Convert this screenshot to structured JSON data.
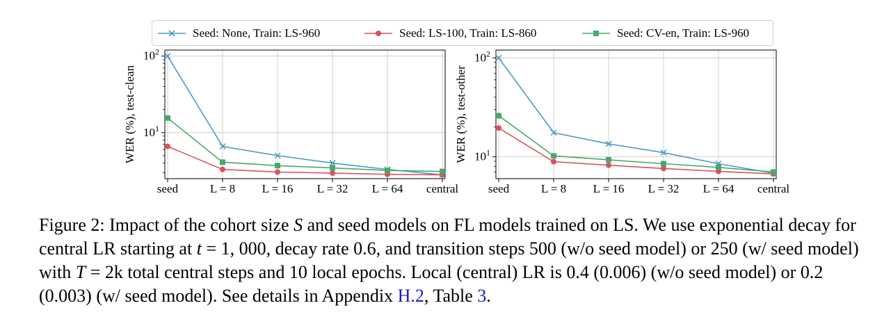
{
  "legend": [
    {
      "label": "Seed: None, Train: LS-960",
      "color": "#4d9ac4",
      "marker": "x"
    },
    {
      "label": "Seed: LS-100, Train: LS-860",
      "color": "#d9525e",
      "marker": "circle"
    },
    {
      "label": "Seed: CV-en, Train: LS-960",
      "color": "#4aa869",
      "marker": "square"
    }
  ],
  "chart_data": [
    {
      "type": "line",
      "ylabel": "WER (%), test-clean",
      "yscale": "log",
      "ylim": [
        2.5,
        120
      ],
      "yticks": [
        {
          "value": 10,
          "label": "10",
          "exp": "1"
        },
        {
          "value": 100,
          "label": "10",
          "exp": "2"
        }
      ],
      "categories": [
        "seed",
        "L = 8",
        "L = 16",
        "L = 32",
        "L = 64",
        "central"
      ],
      "grid": true,
      "series": [
        {
          "name": "Seed: None, Train: LS-960",
          "values": [
            100,
            6.6,
            5.0,
            4.0,
            3.3,
            2.8
          ]
        },
        {
          "name": "Seed: LS-100, Train: LS-860",
          "values": [
            6.6,
            3.3,
            3.05,
            2.95,
            2.85,
            2.8
          ]
        },
        {
          "name": "Seed: CV-en, Train: LS-960",
          "values": [
            15.5,
            4.1,
            3.7,
            3.45,
            3.2,
            3.1
          ]
        }
      ]
    },
    {
      "type": "line",
      "ylabel": "WER (%), test-other",
      "yscale": "log",
      "ylim": [
        6,
        120
      ],
      "yticks": [
        {
          "value": 10,
          "label": "10",
          "exp": "1"
        },
        {
          "value": 100,
          "label": "10",
          "exp": "2"
        }
      ],
      "categories": [
        "seed",
        "L = 8",
        "L = 16",
        "L = 32",
        "L = 64",
        "central"
      ],
      "grid": true,
      "series": [
        {
          "name": "Seed: None, Train: LS-960",
          "values": [
            100,
            17.5,
            13.5,
            11.0,
            8.5,
            6.8
          ]
        },
        {
          "name": "Seed: LS-100, Train: LS-860",
          "values": [
            19.5,
            8.9,
            8.2,
            7.6,
            7.1,
            6.7
          ]
        },
        {
          "name": "Seed: CV-en, Train: LS-960",
          "values": [
            26.0,
            10.2,
            9.3,
            8.5,
            7.8,
            7.0
          ]
        }
      ]
    }
  ],
  "caption": {
    "parts": [
      {
        "text": "Figure 2: Impact of the cohort size "
      },
      {
        "text": "S",
        "italic": true
      },
      {
        "text": " and seed models on FL models trained on LS. We use exponential decay for central LR starting at "
      },
      {
        "text": "t",
        "italic": true
      },
      {
        "text": " = 1, 000, decay rate 0.6, and transition steps 500 (w/o seed model) or 250 (w/ seed model) with "
      },
      {
        "text": "T",
        "italic": true
      },
      {
        "text": " = 2k total central steps and 10 local epochs. Local (central) LR is 0.4 (0.006) (w/o seed model) or 0.2 (0.003) (w/ seed model). See details in Appendix "
      },
      {
        "text": "H.2",
        "ref": true
      },
      {
        "text": ", Table "
      },
      {
        "text": "3",
        "ref": true
      },
      {
        "text": "."
      }
    ]
  }
}
